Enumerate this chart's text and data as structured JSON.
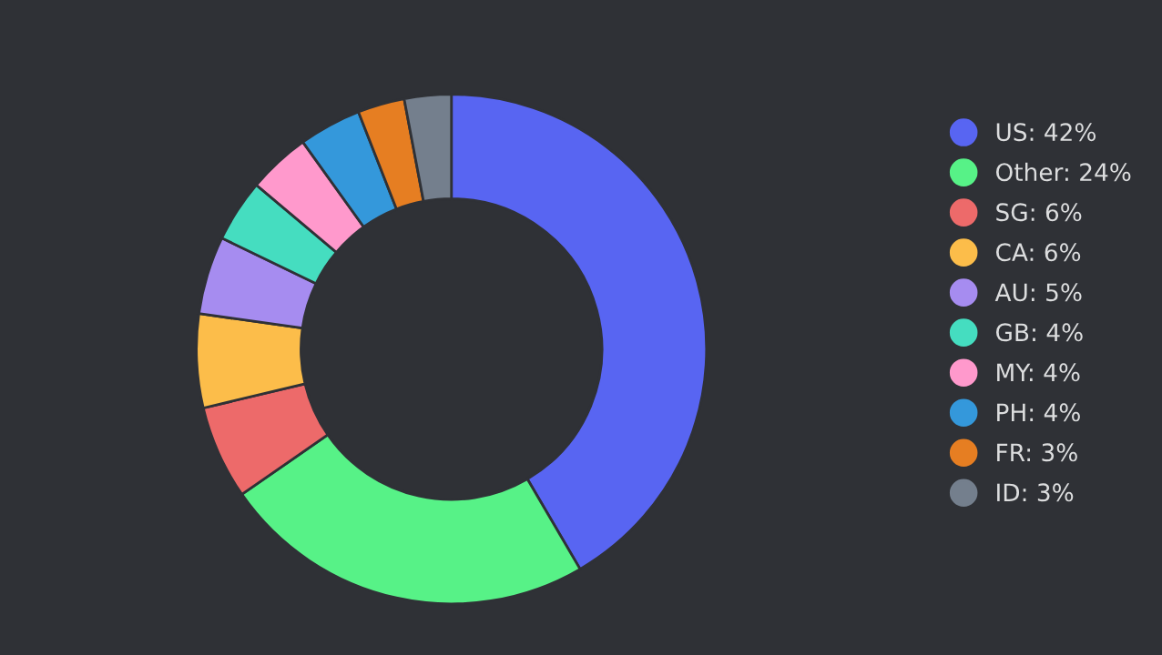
{
  "chart_data": {
    "type": "donut",
    "categories": [
      "US",
      "Other",
      "SG",
      "CA",
      "AU",
      "GB",
      "MY",
      "PH",
      "FR",
      "ID"
    ],
    "values": [
      42,
      24,
      6,
      6,
      5,
      4,
      4,
      4,
      3,
      3
    ],
    "value_labels": [
      "42%",
      "24%",
      "6%",
      "6%",
      "5%",
      "4%",
      "4%",
      "4%",
      "3%",
      "3%"
    ],
    "colors": [
      "#5865f2",
      "#57f287",
      "#ed6a6a",
      "#fcbd4a",
      "#a68cf0",
      "#45ddc0",
      "#ff99cc",
      "#3498db",
      "#e67e22",
      "#747f8d"
    ],
    "legend": "right"
  }
}
